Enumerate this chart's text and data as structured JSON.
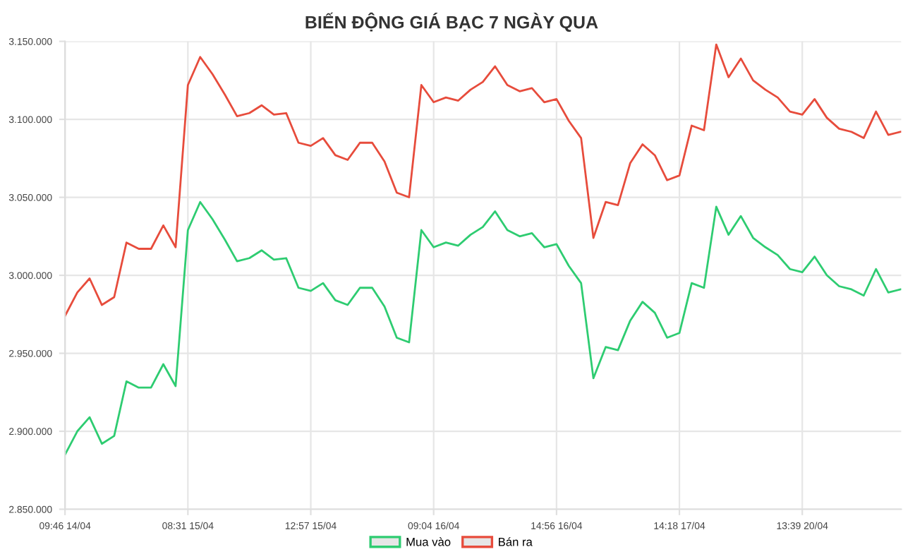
{
  "chart_data": {
    "type": "line",
    "title": "BIẾN ĐỘNG GIÁ BẠC 7 NGÀY QUA",
    "categories": [
      "09:46 14/04",
      null,
      null,
      null,
      null,
      null,
      null,
      null,
      null,
      null,
      "08:31 15/04",
      null,
      null,
      null,
      null,
      null,
      null,
      null,
      null,
      null,
      "12:57 15/04",
      null,
      null,
      null,
      null,
      null,
      null,
      null,
      null,
      null,
      "09:04 16/04",
      null,
      null,
      null,
      null,
      null,
      null,
      null,
      null,
      null,
      "14:56 16/04",
      null,
      null,
      null,
      null,
      null,
      null,
      null,
      null,
      null,
      "14:18 17/04",
      null,
      null,
      null,
      null,
      null,
      null,
      null,
      null,
      null,
      "13:39 20/04",
      null,
      null,
      null,
      null,
      null,
      null,
      null,
      null
    ],
    "series": [
      {
        "name": "Mua vào",
        "color": "#2ecc71",
        "values": [
          2885000,
          2900000,
          2909000,
          2892000,
          2897000,
          2932000,
          2928000,
          2928000,
          2943000,
          2929000,
          3029000,
          3047000,
          3036000,
          3023000,
          3009000,
          3011000,
          3016000,
          3010000,
          3011000,
          2992000,
          2990000,
          2995000,
          2984000,
          2981000,
          2992000,
          2992000,
          2980000,
          2960000,
          2957000,
          3029000,
          3018000,
          3021000,
          3019000,
          3026000,
          3031000,
          3041000,
          3029000,
          3025000,
          3027000,
          3018000,
          3020000,
          3006000,
          2995000,
          2934000,
          2954000,
          2952000,
          2971000,
          2983000,
          2976000,
          2960000,
          2963000,
          2995000,
          2992000,
          3044000,
          3026000,
          3038000,
          3024000,
          3018000,
          3013000,
          3004000,
          3002000,
          3012000,
          3000000,
          2993000,
          2991000,
          2987000,
          3004000,
          2989000,
          2991000
        ]
      },
      {
        "name": "Bán ra",
        "color": "#e74c3c",
        "values": [
          2974000,
          2989000,
          2998000,
          2981000,
          2986000,
          3021000,
          3017000,
          3017000,
          3032000,
          3018000,
          3122000,
          3140000,
          3129000,
          3116000,
          3102000,
          3104000,
          3109000,
          3103000,
          3104000,
          3085000,
          3083000,
          3088000,
          3077000,
          3074000,
          3085000,
          3085000,
          3073000,
          3053000,
          3050000,
          3122000,
          3111000,
          3114000,
          3112000,
          3119000,
          3124000,
          3134000,
          3122000,
          3118000,
          3120000,
          3111000,
          3113000,
          3099000,
          3088000,
          3024000,
          3047000,
          3045000,
          3072000,
          3084000,
          3077000,
          3061000,
          3064000,
          3096000,
          3093000,
          3148000,
          3127000,
          3139000,
          3125000,
          3119000,
          3114000,
          3105000,
          3103000,
          3113000,
          3101000,
          3094000,
          3092000,
          3088000,
          3105000,
          3090000,
          3092000
        ]
      }
    ],
    "ylim": [
      2850000,
      3150000
    ],
    "yticks": [
      {
        "value": 2850000,
        "label": "2.850.000"
      },
      {
        "value": 2900000,
        "label": "2.900.000"
      },
      {
        "value": 2950000,
        "label": "2.950.000"
      },
      {
        "value": 3000000,
        "label": "3.000.000"
      },
      {
        "value": 3050000,
        "label": "3.050.000"
      },
      {
        "value": 3100000,
        "label": "3.100.000"
      },
      {
        "value": 3150000,
        "label": "3.150.000"
      }
    ],
    "grid": true,
    "legend": "bottom",
    "marker": "none",
    "line_style": "solid"
  }
}
